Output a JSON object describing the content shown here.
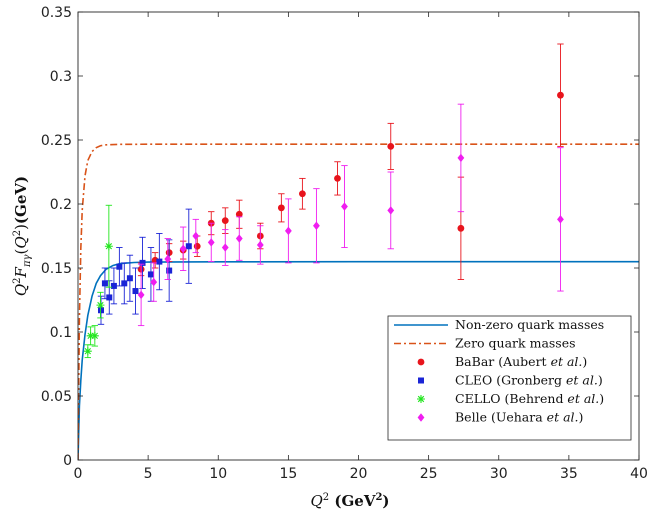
{
  "chart_data": {
    "type": "scatter",
    "xlabel": "Q^2 (GeV^2)",
    "ylabel": "Q^2F_{πγ}(Q^2)(GeV)",
    "xlim": [
      0,
      40
    ],
    "ylim": [
      0,
      0.35
    ],
    "xticks": [
      "0",
      "5",
      "10",
      "15",
      "20",
      "25",
      "30",
      "35",
      "40"
    ],
    "yticks": [
      "0",
      "0.05",
      "0.1",
      "0.15",
      "0.2",
      "0.25",
      "0.3",
      "0.35"
    ],
    "grid": false,
    "legend_position": "bottom-right",
    "curves": [
      {
        "name": "Non-zero quark masses",
        "color": "#0072bd",
        "style": "solid",
        "points": [
          [
            0,
            0.0
          ],
          [
            0.1,
            0.042
          ],
          [
            0.2,
            0.062
          ],
          [
            0.3,
            0.078
          ],
          [
            0.5,
            0.098
          ],
          [
            0.7,
            0.113
          ],
          [
            1.0,
            0.128
          ],
          [
            1.3,
            0.138
          ],
          [
            1.6,
            0.144
          ],
          [
            2.0,
            0.149
          ],
          [
            2.5,
            0.152
          ],
          [
            3.0,
            0.1535
          ],
          [
            4.0,
            0.1543
          ],
          [
            5.0,
            0.1546
          ],
          [
            10,
            0.1548
          ],
          [
            20,
            0.1549
          ],
          [
            40,
            0.1549
          ]
        ]
      },
      {
        "name": "Zero quark masses",
        "color": "#d95319",
        "style": "dashdot",
        "points": [
          [
            0,
            0.0
          ],
          [
            0.1,
            0.11
          ],
          [
            0.2,
            0.165
          ],
          [
            0.3,
            0.195
          ],
          [
            0.5,
            0.222
          ],
          [
            0.7,
            0.234
          ],
          [
            1.0,
            0.241
          ],
          [
            1.3,
            0.244
          ],
          [
            1.6,
            0.2455
          ],
          [
            2.0,
            0.2462
          ],
          [
            3.0,
            0.2466
          ],
          [
            5.0,
            0.2467
          ],
          [
            40,
            0.2467
          ]
        ]
      }
    ],
    "series": [
      {
        "name": "BaBar (Aubert et al.)",
        "marker": "circle",
        "color": "#e8141c",
        "points": [
          {
            "x": 4.5,
            "y": 0.149,
            "err": 0.005
          },
          {
            "x": 5.5,
            "y": 0.156,
            "err": 0.006
          },
          {
            "x": 6.5,
            "y": 0.162,
            "err": 0.007
          },
          {
            "x": 7.5,
            "y": 0.164,
            "err": 0.007
          },
          {
            "x": 8.5,
            "y": 0.167,
            "err": 0.008
          },
          {
            "x": 9.5,
            "y": 0.185,
            "err": 0.009
          },
          {
            "x": 10.5,
            "y": 0.187,
            "err": 0.01
          },
          {
            "x": 11.5,
            "y": 0.192,
            "err": 0.011
          },
          {
            "x": 13.0,
            "y": 0.175,
            "err": 0.01
          },
          {
            "x": 14.5,
            "y": 0.197,
            "err": 0.011
          },
          {
            "x": 16.0,
            "y": 0.208,
            "err": 0.012
          },
          {
            "x": 18.5,
            "y": 0.22,
            "err": 0.013
          },
          {
            "x": 22.3,
            "y": 0.245,
            "err": 0.018
          },
          {
            "x": 27.3,
            "y": 0.181,
            "err": 0.04
          },
          {
            "x": 34.4,
            "y": 0.285,
            "err": 0.04
          }
        ]
      },
      {
        "name": "CLEO (Gronberg et al.)",
        "marker": "square",
        "color": "#1a24d6",
        "points": [
          {
            "x": 1.64,
            "y": 0.117,
            "err": 0.011
          },
          {
            "x": 1.92,
            "y": 0.138,
            "err": 0.012
          },
          {
            "x": 2.23,
            "y": 0.127,
            "err": 0.013
          },
          {
            "x": 2.56,
            "y": 0.136,
            "err": 0.014
          },
          {
            "x": 2.95,
            "y": 0.151,
            "err": 0.015
          },
          {
            "x": 3.3,
            "y": 0.138,
            "err": 0.016
          },
          {
            "x": 3.7,
            "y": 0.142,
            "err": 0.018
          },
          {
            "x": 4.1,
            "y": 0.132,
            "err": 0.018
          },
          {
            "x": 4.6,
            "y": 0.154,
            "err": 0.02
          },
          {
            "x": 5.2,
            "y": 0.145,
            "err": 0.021
          },
          {
            "x": 5.8,
            "y": 0.155,
            "err": 0.022
          },
          {
            "x": 6.5,
            "y": 0.148,
            "err": 0.024
          },
          {
            "x": 7.9,
            "y": 0.167,
            "err": 0.029
          }
        ]
      },
      {
        "name": "CELLO (Behrend et al.)",
        "marker": "star",
        "color": "#22e61e",
        "points": [
          {
            "x": 0.7,
            "y": 0.085,
            "err": 0.005
          },
          {
            "x": 0.9,
            "y": 0.097,
            "err": 0.007
          },
          {
            "x": 1.2,
            "y": 0.097,
            "err": 0.008
          },
          {
            "x": 1.6,
            "y": 0.121,
            "err": 0.01
          },
          {
            "x": 2.2,
            "y": 0.167,
            "err": 0.032
          }
        ]
      },
      {
        "name": "Belle (Uehara et al.)",
        "marker": "diamond",
        "color": "#f01ef0",
        "points": [
          {
            "x": 4.5,
            "y": 0.129,
            "err": 0.024
          },
          {
            "x": 5.4,
            "y": 0.139,
            "err": 0.015
          },
          {
            "x": 6.4,
            "y": 0.157,
            "err": 0.016
          },
          {
            "x": 7.5,
            "y": 0.165,
            "err": 0.017
          },
          {
            "x": 8.4,
            "y": 0.175,
            "err": 0.013
          },
          {
            "x": 9.5,
            "y": 0.17,
            "err": 0.015
          },
          {
            "x": 10.5,
            "y": 0.166,
            "err": 0.014
          },
          {
            "x": 11.5,
            "y": 0.173,
            "err": 0.017
          },
          {
            "x": 13.0,
            "y": 0.168,
            "err": 0.015
          },
          {
            "x": 15.0,
            "y": 0.179,
            "err": 0.025
          },
          {
            "x": 17.0,
            "y": 0.183,
            "err": 0.029
          },
          {
            "x": 19.0,
            "y": 0.198,
            "err": 0.032
          },
          {
            "x": 22.3,
            "y": 0.195,
            "err": 0.03
          },
          {
            "x": 27.3,
            "y": 0.236,
            "err": 0.042
          },
          {
            "x": 34.4,
            "y": 0.188,
            "err": 0.056
          }
        ]
      }
    ]
  }
}
